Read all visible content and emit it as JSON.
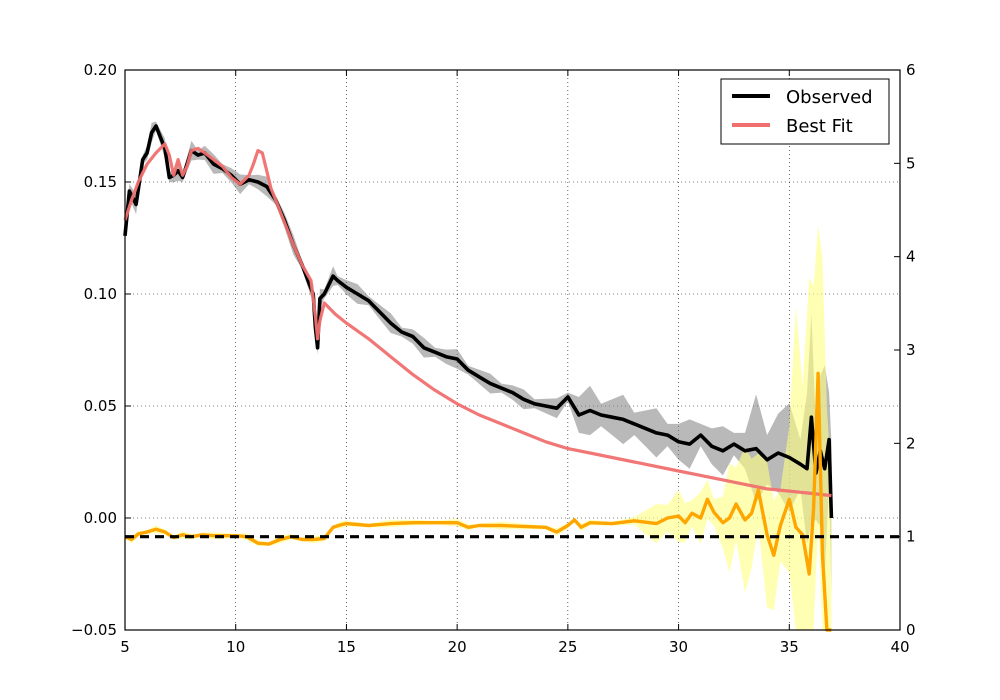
{
  "chart_data": {
    "type": "line",
    "title": "",
    "xlabel": "",
    "ylabel": "",
    "y2label": "",
    "xlim": [
      5,
      40
    ],
    "ylim": [
      -0.05,
      0.2
    ],
    "y2lim": [
      0,
      6
    ],
    "xticks": [
      5,
      10,
      15,
      20,
      25,
      30,
      35,
      40
    ],
    "yticks": [
      -0.05,
      0.0,
      0.05,
      0.1,
      0.15,
      0.2
    ],
    "ytick_labels": [
      "−0.05",
      "0.00",
      "0.05",
      "0.10",
      "0.15",
      "0.20"
    ],
    "y2ticks": [
      0,
      1,
      2,
      3,
      4,
      5,
      6
    ],
    "grid": true,
    "legend_position": "top-right",
    "colors": {
      "observed": "#000000",
      "observed_band": "#808080",
      "best_fit": "#f07070",
      "ratio": "#ffa500",
      "ratio_band": "#ffff80",
      "reference": "#000000"
    },
    "series": [
      {
        "name": "Observed",
        "axis": "left",
        "x": [
          5.0,
          5.2,
          5.5,
          5.8,
          6.0,
          6.2,
          6.4,
          6.6,
          6.8,
          7.0,
          7.2,
          7.4,
          7.6,
          7.8,
          8.0,
          8.3,
          8.6,
          9.0,
          9.4,
          9.8,
          10.2,
          10.6,
          11.0,
          11.4,
          11.8,
          12.2,
          12.6,
          13.0,
          13.3,
          13.5,
          13.6,
          13.7,
          13.8,
          14.0,
          14.2,
          14.4,
          14.6,
          15.0,
          15.5,
          16.0,
          16.5,
          17.0,
          17.5,
          18.0,
          18.5,
          19.0,
          19.5,
          20.0,
          20.5,
          21.0,
          21.5,
          22.0,
          22.5,
          23.0,
          23.5,
          24.0,
          24.5,
          25.0,
          25.5,
          26.0,
          26.5,
          27.0,
          27.5,
          28.0,
          28.5,
          29.0,
          29.5,
          30.0,
          30.5,
          31.0,
          31.5,
          32.0,
          32.5,
          33.0,
          33.5,
          34.0,
          34.5,
          35.0,
          35.5,
          35.8,
          36.0,
          36.2,
          36.4,
          36.6,
          36.8,
          36.9
        ],
        "values": [
          0.126,
          0.146,
          0.14,
          0.16,
          0.163,
          0.172,
          0.175,
          0.17,
          0.165,
          0.152,
          0.153,
          0.155,
          0.152,
          0.158,
          0.164,
          0.162,
          0.163,
          0.158,
          0.156,
          0.153,
          0.149,
          0.151,
          0.15,
          0.148,
          0.142,
          0.133,
          0.122,
          0.113,
          0.105,
          0.1,
          0.085,
          0.076,
          0.098,
          0.1,
          0.104,
          0.108,
          0.106,
          0.103,
          0.1,
          0.097,
          0.092,
          0.087,
          0.083,
          0.081,
          0.076,
          0.074,
          0.072,
          0.071,
          0.066,
          0.063,
          0.06,
          0.058,
          0.056,
          0.053,
          0.051,
          0.05,
          0.049,
          0.054,
          0.046,
          0.048,
          0.046,
          0.045,
          0.044,
          0.042,
          0.04,
          0.038,
          0.037,
          0.034,
          0.033,
          0.037,
          0.032,
          0.03,
          0.033,
          0.03,
          0.031,
          0.026,
          0.029,
          0.027,
          0.024,
          0.022,
          0.045,
          0.02,
          0.03,
          0.022,
          0.035,
          0.0
        ]
      },
      {
        "name": "Best Fit",
        "axis": "left",
        "x": [
          5.0,
          5.3,
          5.6,
          6.0,
          6.4,
          6.8,
          7.0,
          7.2,
          7.4,
          7.6,
          7.8,
          8.0,
          8.3,
          8.6,
          9.0,
          9.4,
          9.8,
          10.2,
          10.6,
          10.8,
          11.0,
          11.2,
          11.4,
          11.6,
          11.8,
          12.2,
          12.6,
          13.0,
          13.4,
          13.6,
          13.7,
          13.8,
          14.0,
          14.5,
          15.0,
          16.0,
          17.0,
          18.0,
          19.0,
          20.0,
          21.0,
          22.0,
          23.0,
          24.0,
          25.0,
          26.0,
          27.0,
          28.0,
          29.0,
          30.0,
          31.0,
          32.0,
          33.0,
          34.0,
          35.0,
          36.0,
          36.9
        ],
        "values": [
          0.133,
          0.142,
          0.15,
          0.158,
          0.163,
          0.167,
          0.162,
          0.153,
          0.16,
          0.153,
          0.157,
          0.164,
          0.165,
          0.163,
          0.16,
          0.157,
          0.152,
          0.149,
          0.153,
          0.158,
          0.164,
          0.163,
          0.155,
          0.147,
          0.142,
          0.132,
          0.122,
          0.113,
          0.106,
          0.09,
          0.08,
          0.088,
          0.096,
          0.091,
          0.087,
          0.08,
          0.072,
          0.064,
          0.057,
          0.051,
          0.046,
          0.042,
          0.038,
          0.034,
          0.031,
          0.029,
          0.027,
          0.025,
          0.023,
          0.021,
          0.019,
          0.017,
          0.015,
          0.013,
          0.012,
          0.011,
          0.01
        ]
      },
      {
        "name": "",
        "axis": "right",
        "x": [
          5.0,
          5.3,
          5.6,
          6.0,
          6.4,
          6.8,
          7.2,
          7.6,
          8.0,
          8.5,
          9.0,
          9.5,
          10.0,
          10.5,
          11.0,
          11.5,
          12.0,
          12.5,
          13.0,
          13.5,
          14.0,
          14.4,
          14.8,
          15.0,
          16.0,
          17.0,
          18.0,
          19.0,
          20.0,
          20.5,
          21.0,
          22.0,
          23.0,
          24.0,
          24.5,
          25.0,
          25.3,
          25.6,
          26.0,
          27.0,
          28.0,
          29.0,
          29.5,
          30.0,
          30.3,
          30.6,
          31.0,
          31.3,
          31.6,
          32.0,
          32.3,
          32.6,
          33.0,
          33.3,
          33.6,
          34.0,
          34.3,
          34.6,
          35.0,
          35.3,
          35.6,
          35.9,
          36.1,
          36.3,
          36.5,
          36.7,
          36.9
        ],
        "values": [
          1.0,
          0.97,
          1.03,
          1.05,
          1.08,
          1.05,
          0.99,
          1.02,
          1.0,
          1.02,
          1.01,
          1.01,
          1.01,
          1.0,
          0.93,
          0.92,
          0.97,
          1.0,
          0.97,
          0.97,
          0.98,
          1.1,
          1.13,
          1.14,
          1.12,
          1.14,
          1.15,
          1.15,
          1.15,
          1.1,
          1.12,
          1.12,
          1.11,
          1.1,
          1.05,
          1.12,
          1.18,
          1.1,
          1.15,
          1.14,
          1.17,
          1.14,
          1.2,
          1.22,
          1.15,
          1.25,
          1.2,
          1.4,
          1.26,
          1.15,
          1.2,
          1.35,
          1.18,
          1.25,
          1.5,
          1.02,
          0.8,
          1.12,
          1.4,
          1.1,
          1.02,
          0.6,
          1.3,
          2.75,
          0.8,
          0.0,
          0.0
        ]
      },
      {
        "name": "",
        "axis": "right",
        "x": [
          5.0,
          40.0
        ],
        "values": [
          1.0,
          1.0
        ],
        "style": "dashed"
      }
    ]
  }
}
